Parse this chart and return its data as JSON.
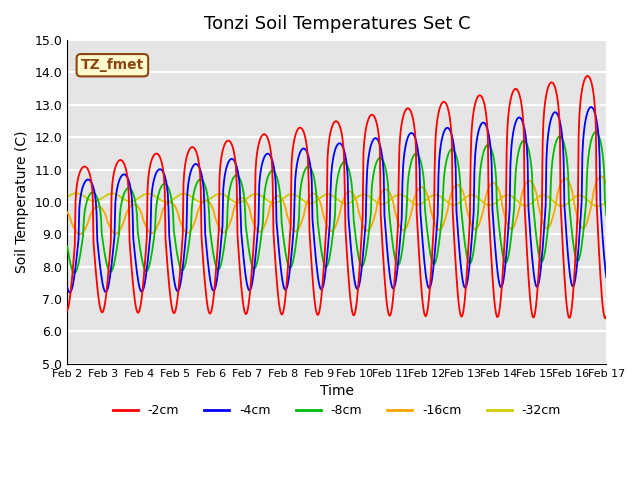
{
  "title": "Tonzi Soil Temperatures Set C",
  "xlabel": "Time",
  "ylabel": "Soil Temperature (C)",
  "ylim": [
    5.0,
    15.0
  ],
  "yticks": [
    5.0,
    6.0,
    7.0,
    8.0,
    9.0,
    10.0,
    11.0,
    12.0,
    13.0,
    14.0,
    15.0
  ],
  "xtick_labels": [
    "Feb 2",
    "Feb 3",
    "Feb 4",
    "Feb 5",
    "Feb 6",
    "Feb 7",
    "Feb 8",
    "Feb 9",
    "Feb 10",
    "Feb 11",
    "Feb 12",
    "Feb 13",
    "Feb 14",
    "Feb 15",
    "Feb 16",
    "Feb 17"
  ],
  "annotation_text": "TZ_fmet",
  "annotation_fg": "#8B4513",
  "annotation_bg": "#FFFACD",
  "annotation_border": "#8B4513",
  "color_2cm": "#FF0000",
  "color_4cm": "#0000FF",
  "color_8cm": "#00BB00",
  "color_16cm": "#FFA500",
  "color_32cm": "#CCCC00",
  "legend_labels": [
    "-2cm",
    "-4cm",
    "-8cm",
    "-16cm",
    "-32cm"
  ],
  "background_color": "#E5E5E5",
  "grid_color": "#FFFFFF",
  "n_points": 720,
  "t_days": 15
}
